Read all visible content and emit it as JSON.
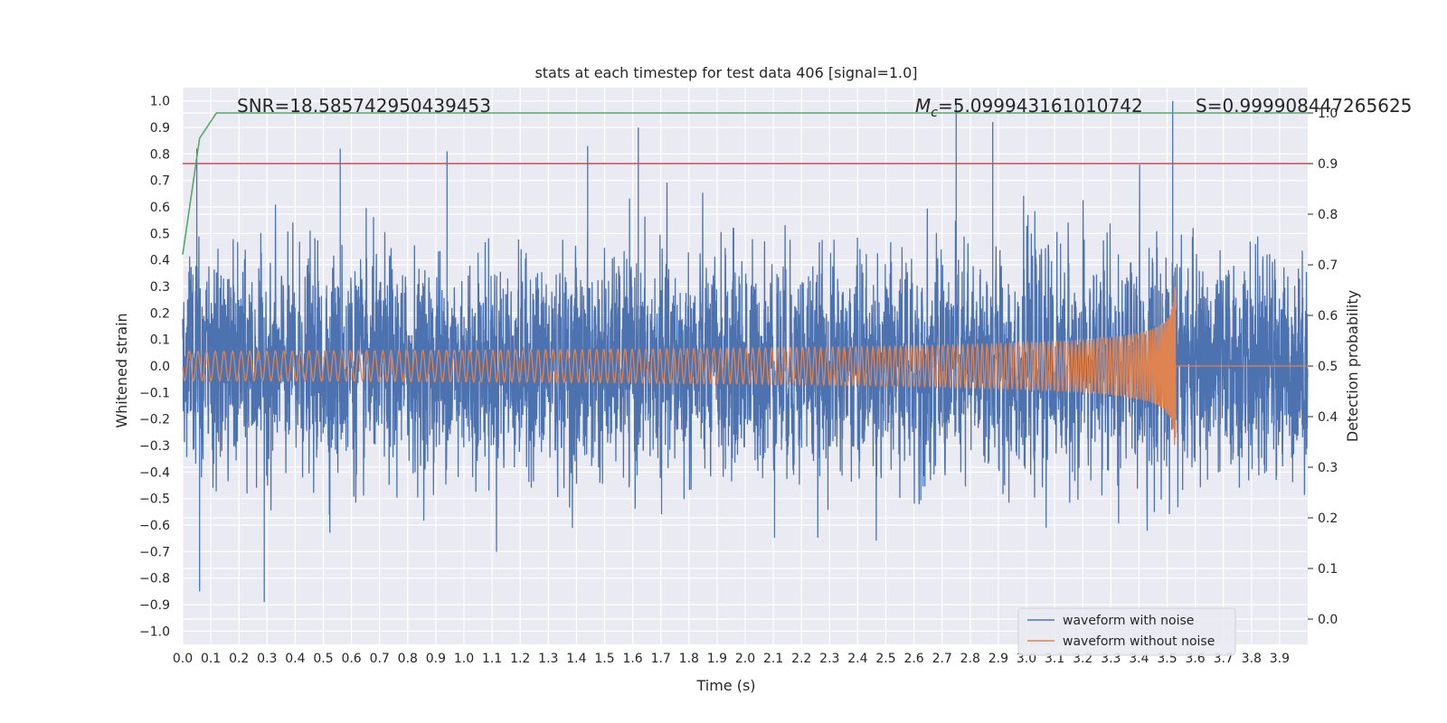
{
  "chart_data": {
    "type": "line",
    "title": "stats at each timestep for test data 406 [signal=1.0]",
    "xlabel": "Time (s)",
    "ylabel": "Whitened strain",
    "ylabel_right": "Detection probability",
    "xlim": [
      0.0,
      4.0
    ],
    "ylim": [
      -1.05,
      1.05
    ],
    "ylim_right": [
      -0.05,
      1.05
    ],
    "x_ticks": [
      "0.0",
      "0.1",
      "0.2",
      "0.3",
      "0.4",
      "0.5",
      "0.6",
      "0.7",
      "0.8",
      "0.9",
      "1.0",
      "1.1",
      "1.2",
      "1.3",
      "1.4",
      "1.5",
      "1.6",
      "1.7",
      "1.8",
      "1.9",
      "2.0",
      "2.1",
      "2.2",
      "2.3",
      "2.4",
      "2.5",
      "2.6",
      "2.7",
      "2.8",
      "2.9",
      "3.0",
      "3.1",
      "3.2",
      "3.3",
      "3.4",
      "3.5",
      "3.6",
      "3.7",
      "3.8",
      "3.9"
    ],
    "y_ticks": [
      "1.0",
      "0.9",
      "0.8",
      "0.7",
      "0.6",
      "0.5",
      "0.4",
      "0.3",
      "0.2",
      "0.1",
      "0.0",
      "−0.1",
      "−0.2",
      "−0.3",
      "−0.4",
      "−0.5",
      "−0.6",
      "−0.7",
      "−0.8",
      "−0.9",
      "−1.0"
    ],
    "y_ticks_right": [
      "1.0",
      "0.9",
      "0.8",
      "0.7",
      "0.6",
      "0.5",
      "0.4",
      "0.3",
      "0.2",
      "0.1",
      "0.0"
    ],
    "annotations": {
      "snr": "SNR=18.585742950439453",
      "mc_symbol": "M",
      "mc_sub": "c",
      "mc_value": "=5.099943161010742",
      "s": "S=0.999908447265625"
    },
    "threshold_right": 0.9,
    "detection_probability": {
      "x": [
        0.0,
        0.06,
        0.12,
        0.2,
        1.0,
        2.0,
        3.0,
        4.0
      ],
      "y": [
        0.72,
        0.95,
        1.0,
        1.0,
        1.0,
        1.0,
        1.0,
        1.0
      ]
    },
    "noise_spikes": {
      "x": [
        0.05,
        0.06,
        0.29,
        0.56,
        0.94,
        1.44,
        1.62,
        2.75,
        2.88,
        3.52
      ],
      "y": [
        0.82,
        -0.85,
        -0.89,
        0.82,
        0.81,
        0.83,
        0.9,
        1.0,
        0.92,
        1.0
      ]
    },
    "clean_waveform": {
      "merger_time": 3.53,
      "start_frequency": 32,
      "start_amplitude": 0.055,
      "peak_amplitude": 0.47
    },
    "legend": {
      "position": "lower right",
      "entries": [
        "waveform with noise",
        "waveform without noise"
      ]
    },
    "colors": {
      "noisy": "#4c72b0",
      "clean": "#dd8452",
      "probability": "#55a868",
      "threshold": "#c44e52",
      "background": "#eaeaf2",
      "grid": "#ffffff"
    },
    "grid": true
  }
}
